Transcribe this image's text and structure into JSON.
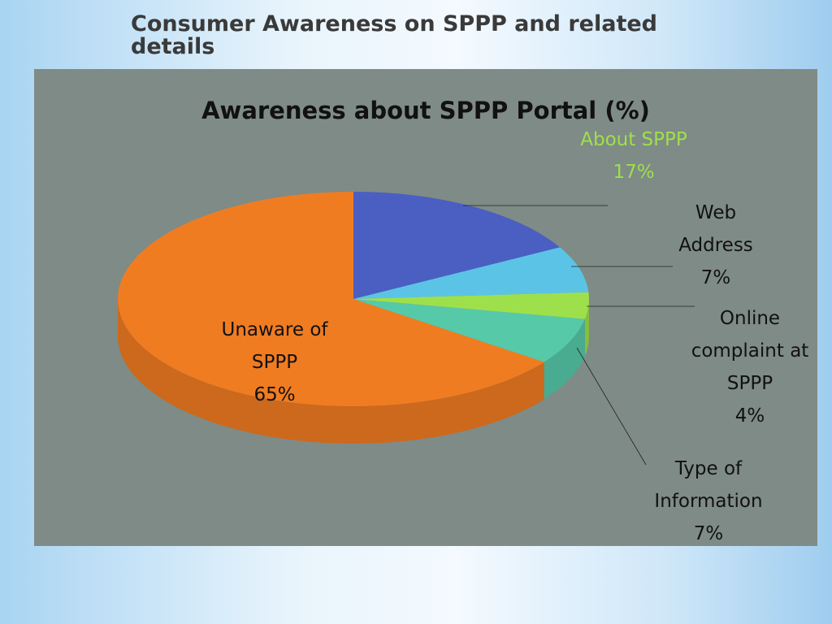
{
  "slide_title": "Consumer Awareness on SPPP and related details",
  "chart_data": {
    "type": "pie",
    "title": "Awareness about SPPP Portal (%)",
    "categories": [
      "About SPPP",
      "Web Address",
      "Online complaint at SPPP",
      "Type of Information",
      "Unaware of SPPP"
    ],
    "values": [
      17,
      7,
      4,
      7,
      65
    ],
    "value_labels": [
      "17%",
      "7%",
      "4%",
      "7%",
      "65%"
    ],
    "colors": [
      "#4a5fc1",
      "#5bc4e6",
      "#9ee04b",
      "#56c9a8",
      "#f07c22"
    ]
  }
}
